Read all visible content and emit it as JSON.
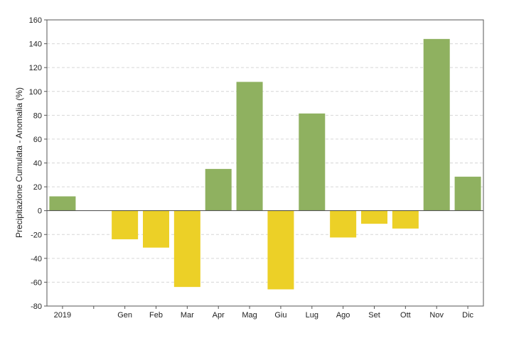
{
  "chart_data": {
    "type": "bar",
    "ylabel": "Precipitazione Cumulata - Anomalia (%)",
    "xlabel": "",
    "ylim": [
      -80,
      160
    ],
    "yticks": [
      -80,
      -60,
      -40,
      -20,
      0,
      20,
      40,
      60,
      80,
      100,
      120,
      140,
      160
    ],
    "grid": "horizontal dashed",
    "categories": [
      "2019",
      "",
      "Gen",
      "Feb",
      "Mar",
      "Apr",
      "Mag",
      "Giu",
      "Lug",
      "Ago",
      "Set",
      "Ott",
      "Nov",
      "Dic"
    ],
    "values": [
      12,
      null,
      -24,
      -31,
      -64,
      35,
      108,
      -66,
      81.5,
      -22.5,
      -11,
      -15,
      144,
      28.5
    ],
    "colors": {
      "positive": "#8fb160",
      "negative": "#ecd027"
    }
  }
}
